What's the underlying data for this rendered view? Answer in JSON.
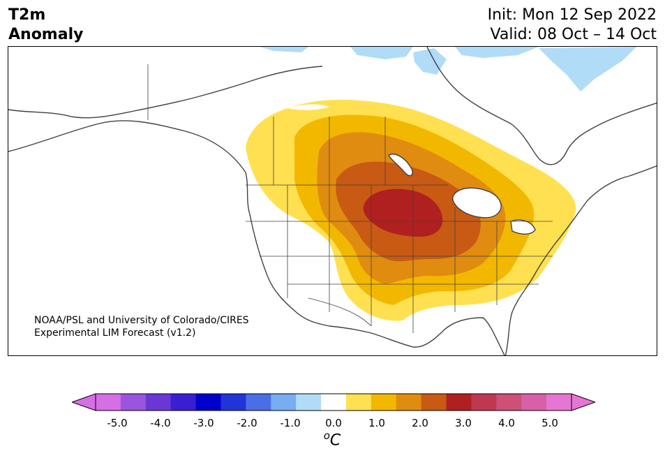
{
  "header": {
    "title_line1": "T2m",
    "title_line2": "Anomaly",
    "init": "Init: Mon 12 Sep 2022",
    "valid": "Valid: 08 Oct – 14 Oct"
  },
  "credit": {
    "line1": "NOAA/PSL and University of Colorado/CIRES",
    "line2": "Experimental LIM Forecast (v1.2)"
  },
  "colorbar": {
    "unit_base": "o",
    "unit_letter": "C",
    "ticks": [
      "-5.0",
      "-4.0",
      "-3.0",
      "-2.0",
      "-1.0",
      "0.0",
      "1.0",
      "2.0",
      "3.0",
      "4.0",
      "5.0"
    ],
    "colors": [
      "#d66ee6",
      "#9a55de",
      "#6a37d6",
      "#3a1ed4",
      "#0000cc",
      "#2234d8",
      "#4a6ee4",
      "#78aef0",
      "#b0dcf8",
      "#ffffff",
      "#ffe050",
      "#f2b800",
      "#e08c10",
      "#c85a14",
      "#b02020",
      "#c03850",
      "#cc5078",
      "#d860a8",
      "#e676d4"
    ],
    "under_color": "#d66ee6",
    "over_color": "#e676d4"
  },
  "map": {
    "anomaly_levels": {
      "level_0_5": "#ffe050",
      "level_1_0": "#f2b800",
      "level_1_5": "#e08c10",
      "level_2_0": "#c85a14",
      "level_2_5": "#b02020",
      "cold_0_5": "#b0dcf8"
    }
  }
}
